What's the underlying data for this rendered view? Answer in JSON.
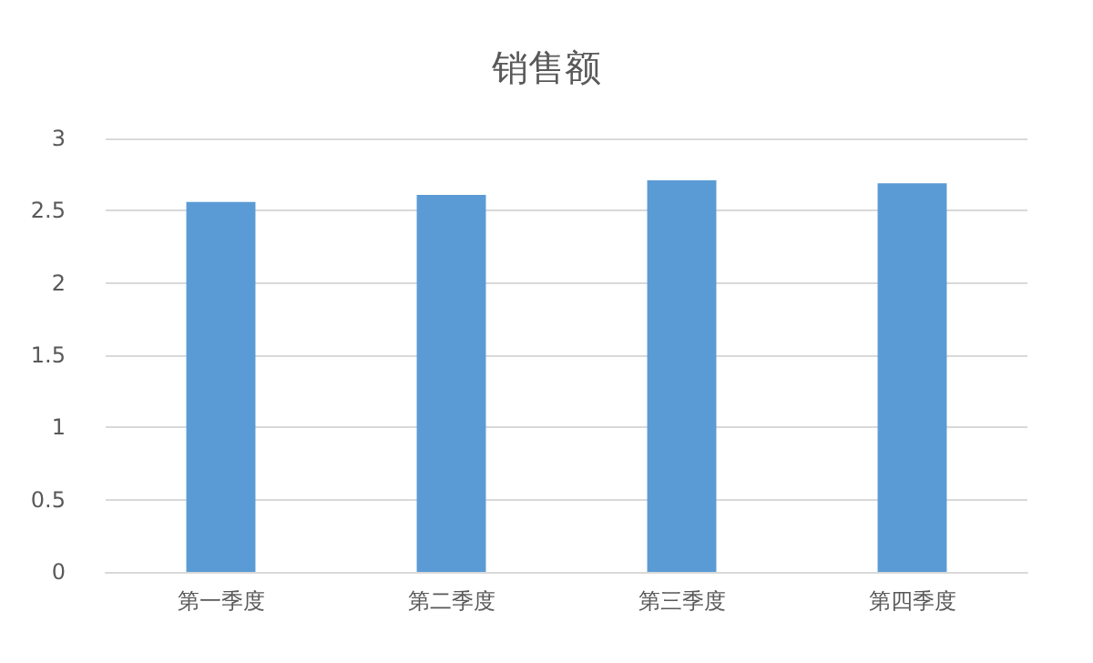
{
  "chart_data": {
    "type": "bar",
    "title": "销售额",
    "categories": [
      "第一季度",
      "第二季度",
      "第三季度",
      "第四季度"
    ],
    "values": [
      2.56,
      2.61,
      2.71,
      2.69
    ],
    "color": "#5b9bd5",
    "ylim": [
      0,
      3
    ],
    "yticks": [
      0,
      0.5,
      1,
      1.5,
      2,
      2.5,
      3
    ],
    "grid": "y"
  }
}
